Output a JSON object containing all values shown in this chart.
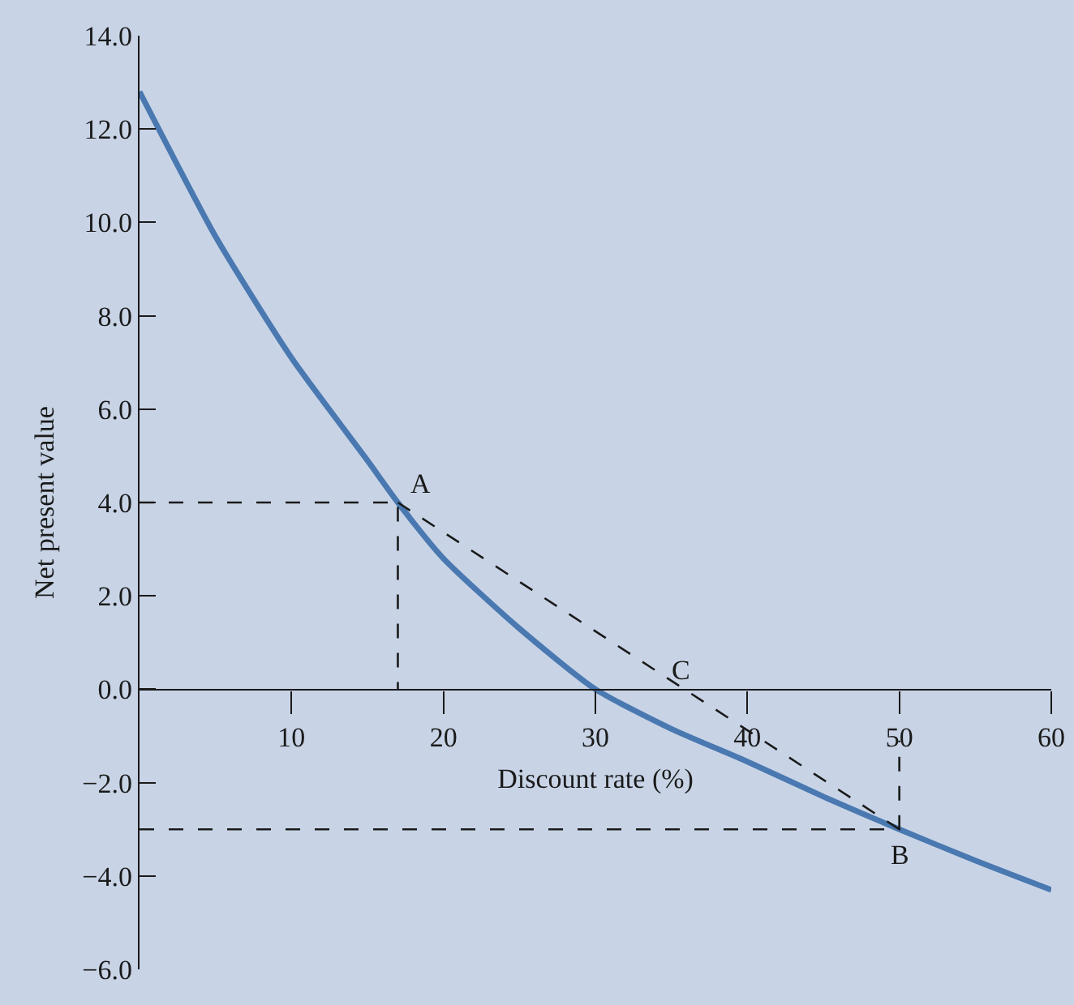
{
  "chart_data": {
    "type": "line",
    "xlabel": "Discount rate (%)",
    "ylabel": "Net present value",
    "xlim": [
      0,
      60
    ],
    "xticks": [
      10,
      20,
      30,
      40,
      50,
      60
    ],
    "ylim": [
      -6,
      14
    ],
    "yticks": [
      {
        "value": -6,
        "label": "−6.0"
      },
      {
        "value": -4,
        "label": "−4.0"
      },
      {
        "value": -2,
        "label": "−2.0"
      },
      {
        "value": 0,
        "label": "0.0"
      },
      {
        "value": 2,
        "label": "2.0"
      },
      {
        "value": 4,
        "label": "4.0"
      },
      {
        "value": 6,
        "label": "6.0"
      },
      {
        "value": 8,
        "label": "8.0"
      },
      {
        "value": 10,
        "label": "10.0"
      },
      {
        "value": 12,
        "label": "12.0"
      },
      {
        "value": 14,
        "label": "14.0"
      }
    ],
    "grid": false,
    "marker": "none",
    "series": [
      {
        "color": "#4a78b0",
        "line_style": "solid",
        "x": [
          0,
          5,
          10,
          15,
          17,
          20,
          25,
          30,
          35,
          40,
          45,
          50,
          55,
          60
        ],
        "values": [
          12.8,
          9.7,
          7.1,
          4.9,
          4.0,
          2.8,
          1.3,
          0,
          -0.85,
          -1.55,
          -2.3,
          -3.0,
          -3.67,
          -4.3
        ]
      },
      {
        "color": "#1a1a1a",
        "line_style": "dashed",
        "x": [
          0,
          17,
          17
        ],
        "values": [
          4,
          4,
          0
        ]
      },
      {
        "color": "#1a1a1a",
        "line_style": "dashed",
        "x": [
          17,
          50
        ],
        "values": [
          4,
          -3.0
        ]
      },
      {
        "color": "#1a1a1a",
        "line_style": "dashed",
        "x": [
          0,
          50,
          50
        ],
        "values": [
          -3.0,
          -3.0,
          -1.1
        ]
      }
    ],
    "annotations": [
      {
        "text": "A",
        "x": 17,
        "y": 4
      },
      {
        "text": "B",
        "x": 50,
        "y": -3.0
      },
      {
        "text": "C",
        "x": 35.6,
        "y": 0
      }
    ]
  }
}
